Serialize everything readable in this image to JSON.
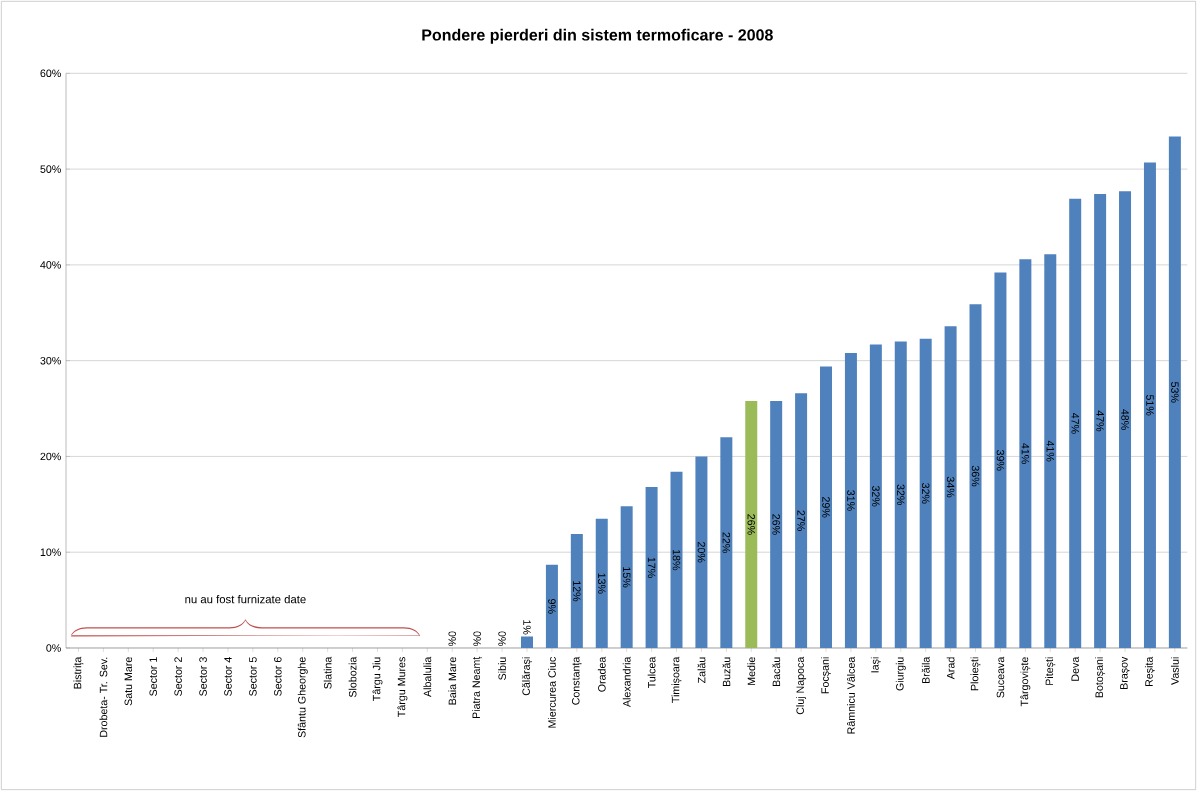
{
  "chart_data": {
    "type": "bar",
    "title": "Pondere pierderi din sistem termoficare - 2008",
    "categories": [
      "Bistrița",
      "Drobeta- Tr. Sev.",
      "Satu Mare",
      "Sector 1",
      "Sector 2",
      "Sector 3",
      "Sector 4",
      "Sector 5",
      "Sector 6",
      "Sfântu Gheorghe",
      "Slatina",
      "Slobozia",
      "Târgu Jiu",
      "Târgu Mures",
      "Albalulia",
      "Baia Mare",
      "Piatra Neamț",
      "Sibiu",
      "Călărași",
      "Miercurea Ciuc",
      "Constanța",
      "Oradea",
      "Alexandria",
      "Tulcea",
      "Timișoara",
      "Zalău",
      "Buzău",
      "Medie",
      "Bacău",
      "Cluj Napoca",
      "Focșani",
      "Râmnicu Vâlcea",
      "Iași",
      "Giurgiu",
      "Brăila",
      "Arad",
      "Ploiești",
      "Suceava",
      "Târgoviște",
      "Pitești",
      "Deva",
      "Botoșani",
      "Brașov",
      "Reșita",
      "Vaslui"
    ],
    "values": [
      null,
      null,
      null,
      null,
      null,
      null,
      null,
      null,
      null,
      null,
      null,
      null,
      null,
      null,
      null,
      0,
      0,
      0,
      1.2,
      8.7,
      11.9,
      13.5,
      14.8,
      16.8,
      18.4,
      20.0,
      22.0,
      25.8,
      25.8,
      26.6,
      29.4,
      30.8,
      31.7,
      32.0,
      32.3,
      33.6,
      35.9,
      39.2,
      40.6,
      41.1,
      46.9,
      47.4,
      47.7,
      50.7,
      53.4
    ],
    "value_labels": [
      null,
      null,
      null,
      null,
      null,
      null,
      null,
      null,
      null,
      null,
      null,
      null,
      null,
      null,
      null,
      "0%",
      "0%",
      "0%",
      "1%",
      "9%",
      "12%",
      "13%",
      "15%",
      "17%",
      "18%",
      "20%",
      "22%",
      "26%",
      "26%",
      "27%",
      "29%",
      "31%",
      "32%",
      "32%",
      "32%",
      "34%",
      "36%",
      "39%",
      "41%",
      "41%",
      "47%",
      "47%",
      "48%",
      "51%",
      "53%"
    ],
    "colors": [
      "#4f81bd",
      "#4f81bd",
      "#4f81bd",
      "#4f81bd",
      "#4f81bd",
      "#4f81bd",
      "#4f81bd",
      "#4f81bd",
      "#4f81bd",
      "#4f81bd",
      "#4f81bd",
      "#4f81bd",
      "#4f81bd",
      "#4f81bd",
      "#4f81bd",
      "#4f81bd",
      "#4f81bd",
      "#4f81bd",
      "#4f81bd",
      "#4f81bd",
      "#4f81bd",
      "#4f81bd",
      "#4f81bd",
      "#4f81bd",
      "#4f81bd",
      "#4f81bd",
      "#4f81bd",
      "#9bbb59",
      "#4f81bd",
      "#4f81bd",
      "#4f81bd",
      "#4f81bd",
      "#4f81bd",
      "#4f81bd",
      "#4f81bd",
      "#4f81bd",
      "#4f81bd",
      "#4f81bd",
      "#4f81bd",
      "#4f81bd",
      "#4f81bd",
      "#4f81bd",
      "#4f81bd",
      "#4f81bd",
      "#4f81bd"
    ],
    "ylim": [
      0,
      60
    ],
    "yticks": [
      {
        "value": 0,
        "label": "0%"
      },
      {
        "value": 10,
        "label": "10%"
      },
      {
        "value": 20,
        "label": "20%"
      },
      {
        "value": 30,
        "label": "30%"
      },
      {
        "value": 40,
        "label": "40%"
      },
      {
        "value": 50,
        "label": "50%"
      },
      {
        "value": 60,
        "label": "60%"
      }
    ],
    "grid": "y",
    "annotations": [
      "nu au fost furnizate date"
    ]
  }
}
